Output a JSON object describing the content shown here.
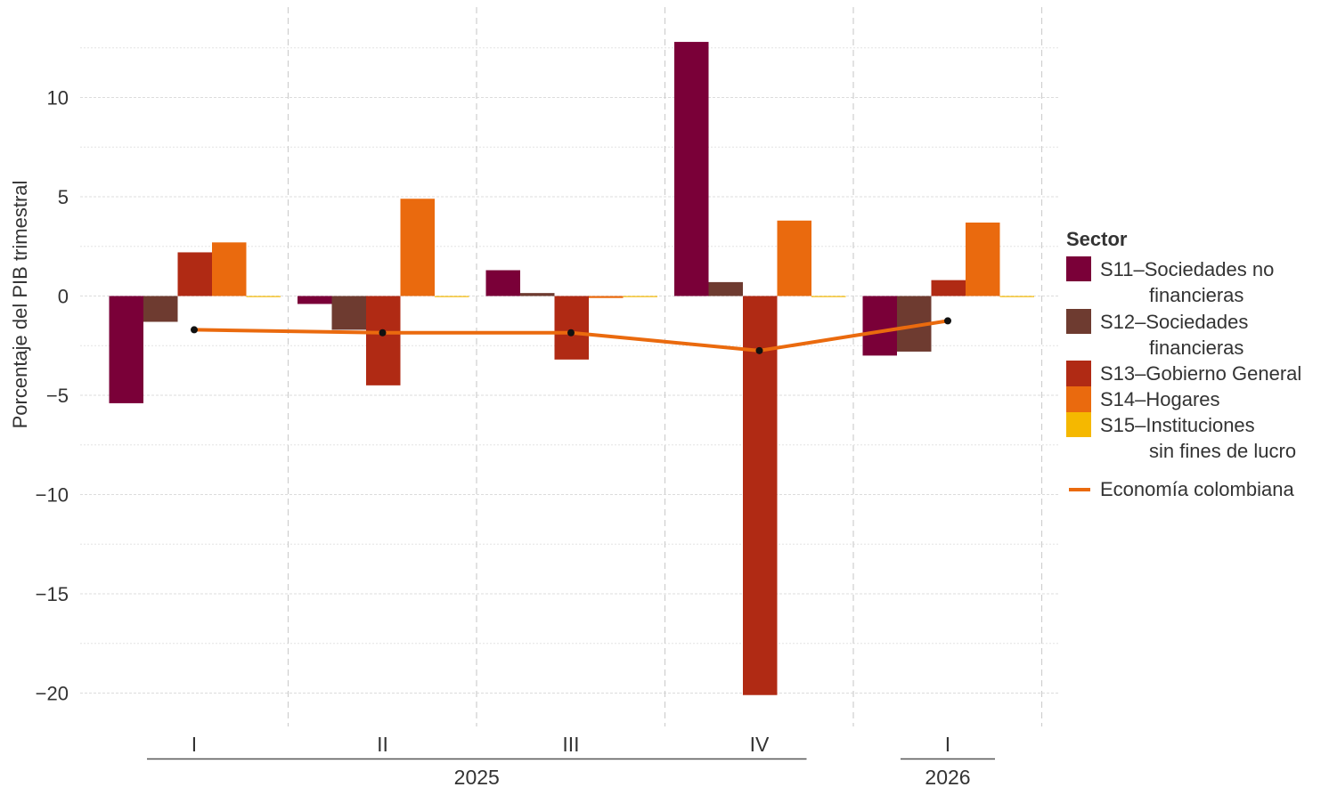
{
  "chart_data": {
    "type": "bar",
    "ylabel": "Porcentaje del PIB trimestral",
    "ylim": [
      -21,
      14
    ],
    "y_ticks": [
      10,
      5,
      0,
      -5,
      -10,
      -15,
      -20
    ],
    "y_tick_labels": [
      "10",
      "5",
      "0",
      "−5",
      "−10",
      "−15",
      "−20"
    ],
    "grid": true,
    "categories": [
      "I",
      "II",
      "III",
      "IV",
      "I"
    ],
    "year_groups": [
      {
        "label": "2025",
        "quarters": [
          0,
          1,
          2,
          3
        ]
      },
      {
        "label": "2026",
        "quarters": [
          4
        ]
      }
    ],
    "series": [
      {
        "name": "S11–Sociedades no financieras",
        "color": "#7a0038",
        "values": [
          -5.4,
          -0.4,
          1.3,
          12.8,
          -3.0
        ]
      },
      {
        "name": "S12–Sociedades financieras",
        "color": "#6e3b30",
        "values": [
          -1.3,
          -1.7,
          0.15,
          0.7,
          -2.8
        ]
      },
      {
        "name": "S13–Gobierno General",
        "color": "#b02a14",
        "values": [
          2.2,
          -4.5,
          -3.2,
          -20.1,
          0.8
        ]
      },
      {
        "name": "S14–Hogares",
        "color": "#ea6a0e",
        "values": [
          2.7,
          4.9,
          -0.1,
          3.8,
          3.7
        ]
      },
      {
        "name": "S15–Instituciones sin fines de lucro",
        "color": "#f5b800",
        "values": [
          0.0,
          0.0,
          0.0,
          0.0,
          0.0
        ]
      }
    ],
    "line_series": {
      "name": "Economía colombiana",
      "color": "#ea6a0e",
      "values": [
        -1.7,
        -1.85,
        -1.85,
        -2.75,
        -1.25
      ]
    },
    "legend": {
      "title": "Sector",
      "placement": "right",
      "items": [
        {
          "lines": [
            "S11–Sociedades no",
            "financieras"
          ]
        },
        {
          "lines": [
            "S12–Sociedades",
            "financieras"
          ]
        },
        {
          "lines": [
            "S13–Gobierno General"
          ]
        },
        {
          "lines": [
            "S14–Hogares"
          ]
        },
        {
          "lines": [
            "S15–Instituciones",
            "sin fines de lucro"
          ]
        }
      ],
      "line_label": "Economía colombiana"
    }
  }
}
